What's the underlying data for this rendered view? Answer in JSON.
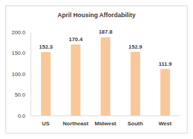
{
  "chart_data": {
    "type": "bar",
    "title": "April Housing Affordability",
    "categories": [
      "US",
      "Northeast",
      "Midwest",
      "South",
      "West"
    ],
    "values": [
      152.3,
      170.4,
      187.8,
      152.9,
      111.9
    ],
    "color": "#f8c89b",
    "ylim": [
      0,
      200
    ],
    "yticks": [
      {
        "value": 0,
        "label": "0.0"
      },
      {
        "value": 50,
        "label": "50.0"
      },
      {
        "value": 100,
        "label": "100.0"
      },
      {
        "value": 150,
        "label": "150.0"
      },
      {
        "value": 200,
        "label": "200.0"
      }
    ],
    "grid": false,
    "data_labels": true
  }
}
